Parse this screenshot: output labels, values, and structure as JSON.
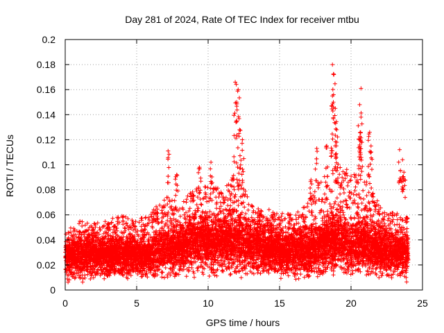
{
  "chart_data": {
    "type": "scatter",
    "title": "Day 281 of 2024, Rate Of TEC Index for receiver mtbu",
    "xlabel": "GPS time / hours",
    "ylabel": "ROTI / TECUs",
    "xlim": [
      0,
      25
    ],
    "ylim": [
      0,
      0.2
    ],
    "x_ticks": [
      "0",
      "5",
      "10",
      "15",
      "20",
      "25"
    ],
    "y_ticks": [
      "0",
      "0.02",
      "0.04",
      "0.06",
      "0.08",
      "0.1",
      "0.12",
      "0.14",
      "0.16",
      "0.18",
      "0.2"
    ],
    "grid": true,
    "marker": "+",
    "color": "#ff0000",
    "density_profile": {
      "x": [
        0,
        1,
        2,
        3,
        4,
        5,
        6,
        7,
        8,
        9,
        10,
        11,
        12,
        13,
        14,
        15,
        16,
        17,
        18,
        19,
        20,
        21,
        22,
        23,
        24
      ],
      "typical": [
        0.025,
        0.027,
        0.028,
        0.027,
        0.027,
        0.026,
        0.027,
        0.032,
        0.032,
        0.04,
        0.038,
        0.037,
        0.04,
        0.034,
        0.033,
        0.031,
        0.03,
        0.03,
        0.034,
        0.038,
        0.037,
        0.036,
        0.032,
        0.03,
        0.028
      ],
      "upper": [
        0.047,
        0.055,
        0.053,
        0.056,
        0.06,
        0.055,
        0.062,
        0.075,
        0.07,
        0.08,
        0.085,
        0.08,
        0.095,
        0.068,
        0.065,
        0.062,
        0.06,
        0.07,
        0.09,
        0.1,
        0.095,
        0.09,
        0.07,
        0.062,
        0.058
      ]
    },
    "peaks": [
      {
        "x": 7.2,
        "y": 0.111
      },
      {
        "x": 7.8,
        "y": 0.092
      },
      {
        "x": 9.4,
        "y": 0.098
      },
      {
        "x": 10.2,
        "y": 0.102
      },
      {
        "x": 11.9,
        "y": 0.166
      },
      {
        "x": 12.1,
        "y": 0.16
      },
      {
        "x": 12.0,
        "y": 0.15
      },
      {
        "x": 12.2,
        "y": 0.128
      },
      {
        "x": 12.4,
        "y": 0.12
      },
      {
        "x": 17.2,
        "y": 0.088
      },
      {
        "x": 17.6,
        "y": 0.113
      },
      {
        "x": 18.3,
        "y": 0.115
      },
      {
        "x": 18.7,
        "y": 0.18
      },
      {
        "x": 18.8,
        "y": 0.172
      },
      {
        "x": 18.7,
        "y": 0.155
      },
      {
        "x": 18.9,
        "y": 0.145
      },
      {
        "x": 19.0,
        "y": 0.128
      },
      {
        "x": 19.0,
        "y": 0.118
      },
      {
        "x": 20.7,
        "y": 0.161
      },
      {
        "x": 20.6,
        "y": 0.148
      },
      {
        "x": 20.7,
        "y": 0.138
      },
      {
        "x": 20.6,
        "y": 0.12
      },
      {
        "x": 21.3,
        "y": 0.126
      },
      {
        "x": 21.4,
        "y": 0.115
      },
      {
        "x": 23.4,
        "y": 0.112
      },
      {
        "x": 23.6,
        "y": 0.104
      },
      {
        "x": 23.7,
        "y": 0.094
      }
    ]
  }
}
